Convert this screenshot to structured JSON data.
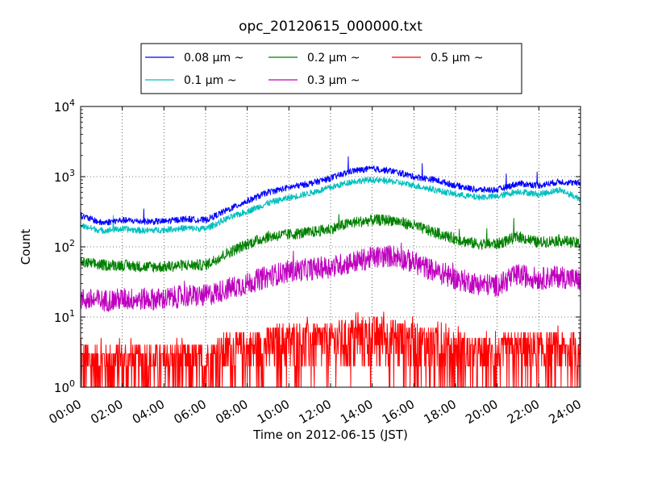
{
  "chart_data": {
    "type": "line",
    "title": "opc_20120615_000000.txt",
    "xlabel": "Time on 2012-06-15 (JST)",
    "ylabel": "Count",
    "xlim": [
      "2012-06-15 00:00",
      "2012-06-16 00:00"
    ],
    "ylim": [
      1,
      10000
    ],
    "yscale": "log",
    "grid": true,
    "legend_placement": "top-center, above plot",
    "x_ticks": [
      "00:00",
      "02:00",
      "04:00",
      "06:00",
      "08:00",
      "10:00",
      "12:00",
      "14:00",
      "16:00",
      "18:00",
      "20:00",
      "22:00",
      "24:00"
    ],
    "y_ticks": [
      {
        "value": 1,
        "base": "10",
        "exp": "0"
      },
      {
        "value": 10,
        "base": "10",
        "exp": "1"
      },
      {
        "value": 100,
        "base": "10",
        "exp": "2"
      },
      {
        "value": 1000,
        "base": "10",
        "exp": "3"
      },
      {
        "value": 10000,
        "base": "10",
        "exp": "4"
      }
    ],
    "x_hours": [
      0,
      1,
      2,
      3,
      4,
      5,
      6,
      7,
      8,
      9,
      10,
      11,
      12,
      13,
      14,
      15,
      16,
      17,
      18,
      19,
      20,
      21,
      22,
      23,
      24
    ],
    "series": [
      {
        "name": "0.08 μm ~",
        "color": "#0000ff",
        "values": [
          280,
          220,
          240,
          230,
          230,
          250,
          240,
          330,
          450,
          600,
          700,
          800,
          950,
          1200,
          1300,
          1200,
          1000,
          900,
          750,
          650,
          650,
          800,
          750,
          850,
          800
        ]
      },
      {
        "name": "0.1 μm ~",
        "color": "#00bfbf",
        "values": [
          200,
          170,
          180,
          170,
          175,
          185,
          180,
          250,
          320,
          420,
          500,
          580,
          700,
          850,
          900,
          850,
          750,
          650,
          560,
          510,
          520,
          620,
          560,
          650,
          480
        ]
      },
      {
        "name": "0.2 μm ~",
        "color": "#008000",
        "values": [
          60,
          55,
          55,
          52,
          52,
          55,
          55,
          80,
          110,
          140,
          150,
          160,
          180,
          220,
          240,
          240,
          200,
          160,
          130,
          110,
          110,
          140,
          115,
          125,
          110
        ]
      },
      {
        "name": "0.3 μm ~",
        "color": "#bf00bf",
        "values": [
          18,
          17,
          18,
          18,
          18,
          20,
          20,
          25,
          30,
          38,
          45,
          48,
          52,
          60,
          70,
          75,
          60,
          45,
          35,
          30,
          28,
          40,
          35,
          38,
          33
        ]
      },
      {
        "name": "0.5 μm ~",
        "color": "#ff0000",
        "values": [
          2,
          2,
          2,
          2,
          2,
          2,
          2,
          3,
          3,
          3.5,
          4,
          4,
          4,
          4.5,
          5,
          4.5,
          4,
          3.5,
          3,
          2.5,
          2.5,
          3,
          3,
          3,
          3
        ]
      }
    ]
  }
}
